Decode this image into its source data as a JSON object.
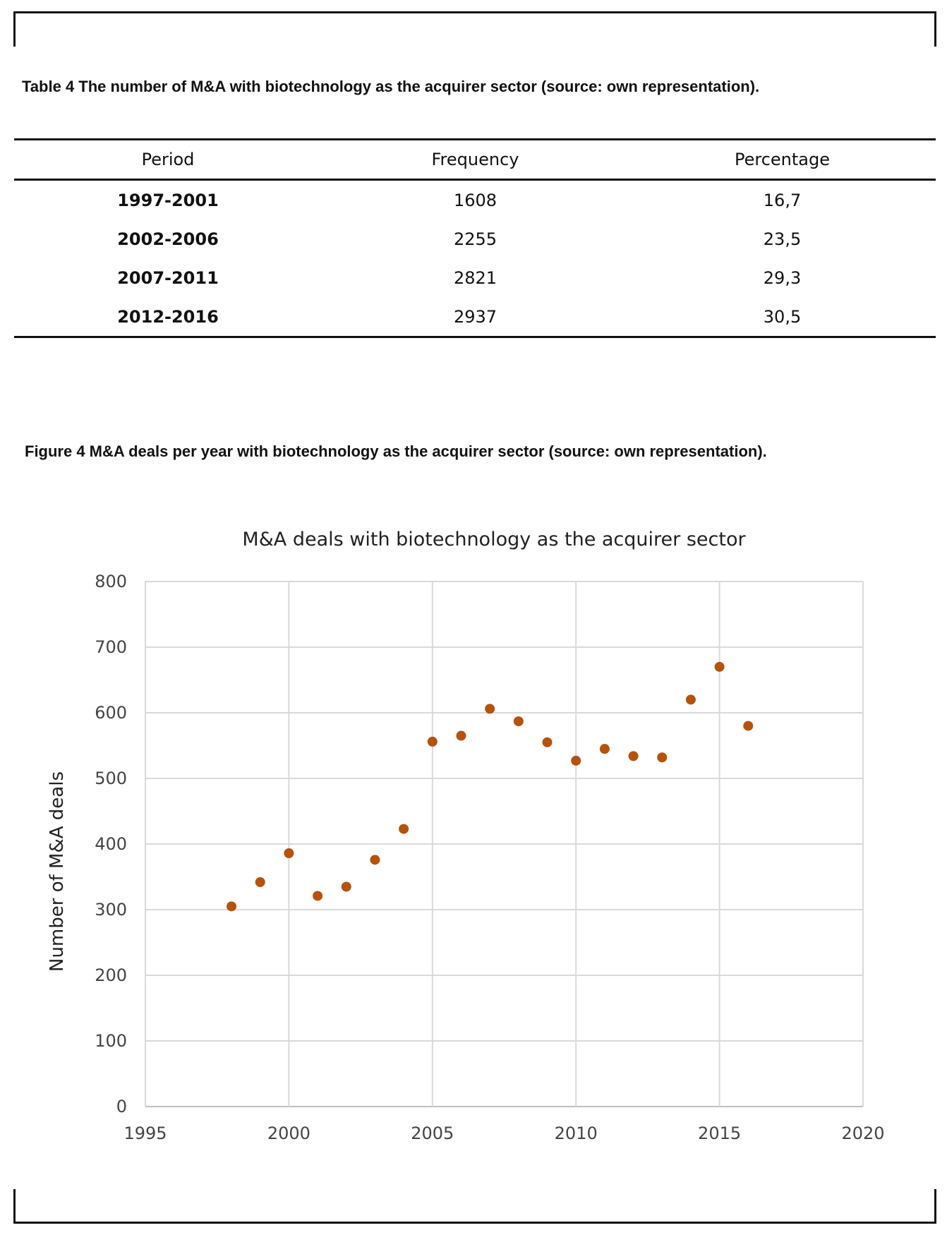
{
  "table": {
    "caption": "Table 4 The number of M&A with biotechnology as the acquirer sector (source: own representation).",
    "headers": [
      "Period",
      "Frequency",
      "Percentage"
    ],
    "rows": [
      {
        "period": "1997-2001",
        "frequency": "1608",
        "percentage": "16,7"
      },
      {
        "period": "2002-2006",
        "frequency": "2255",
        "percentage": "23,5"
      },
      {
        "period": "2007-2011",
        "frequency": "2821",
        "percentage": "29,3"
      },
      {
        "period": "2012-2016",
        "frequency": "2937",
        "percentage": "30,5"
      }
    ]
  },
  "figure": {
    "caption": "Figure 4 M&A deals per year with biotechnology as the acquirer sector (source: own representation)."
  },
  "chart_data": {
    "type": "scatter",
    "title": "M&A deals with biotechnology as the acquirer sector",
    "xlabel": "",
    "ylabel": "Number of M&A deals",
    "xlim": [
      1995,
      2020
    ],
    "ylim": [
      0,
      800
    ],
    "xticks": [
      "1995",
      "2000",
      "2005",
      "2010",
      "2015",
      "2020"
    ],
    "yticks": [
      "0",
      "100",
      "200",
      "300",
      "400",
      "500",
      "600",
      "700",
      "800"
    ],
    "grid": true,
    "legend": "none",
    "marker_color": "#b5520b",
    "grid_color": "#d9d9d9",
    "x": [
      1998,
      1999,
      2000,
      2001,
      2002,
      2003,
      2004,
      2005,
      2006,
      2007,
      2008,
      2009,
      2010,
      2011,
      2012,
      2013,
      2014,
      2015,
      2016
    ],
    "y": [
      305,
      342,
      386,
      321,
      335,
      376,
      423,
      556,
      565,
      606,
      587,
      555,
      527,
      545,
      534,
      532,
      620,
      670,
      580
    ]
  }
}
